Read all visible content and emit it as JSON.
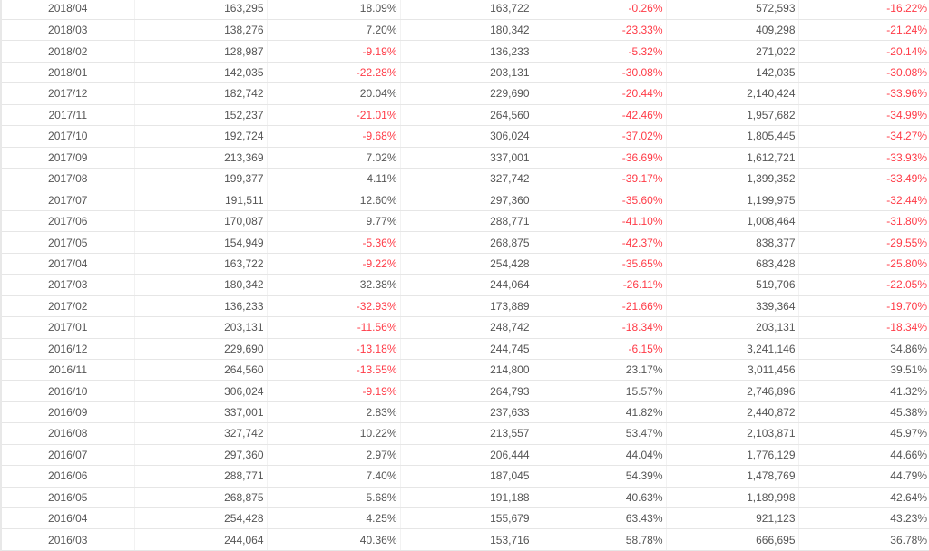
{
  "colors": {
    "text": "#555555",
    "negative": "#ff3b47"
  },
  "rows": [
    [
      "2018/04",
      "163,295",
      "18.09%",
      "163,722",
      "-0.26%",
      "572,593",
      "-16.22%"
    ],
    [
      "2018/03",
      "138,276",
      "7.20%",
      "180,342",
      "-23.33%",
      "409,298",
      "-21.24%"
    ],
    [
      "2018/02",
      "128,987",
      "-9.19%",
      "136,233",
      "-5.32%",
      "271,022",
      "-20.14%"
    ],
    [
      "2018/01",
      "142,035",
      "-22.28%",
      "203,131",
      "-30.08%",
      "142,035",
      "-30.08%"
    ],
    [
      "2017/12",
      "182,742",
      "20.04%",
      "229,690",
      "-20.44%",
      "2,140,424",
      "-33.96%"
    ],
    [
      "2017/11",
      "152,237",
      "-21.01%",
      "264,560",
      "-42.46%",
      "1,957,682",
      "-34.99%"
    ],
    [
      "2017/10",
      "192,724",
      "-9.68%",
      "306,024",
      "-37.02%",
      "1,805,445",
      "-34.27%"
    ],
    [
      "2017/09",
      "213,369",
      "7.02%",
      "337,001",
      "-36.69%",
      "1,612,721",
      "-33.93%"
    ],
    [
      "2017/08",
      "199,377",
      "4.11%",
      "327,742",
      "-39.17%",
      "1,399,352",
      "-33.49%"
    ],
    [
      "2017/07",
      "191,511",
      "12.60%",
      "297,360",
      "-35.60%",
      "1,199,975",
      "-32.44%"
    ],
    [
      "2017/06",
      "170,087",
      "9.77%",
      "288,771",
      "-41.10%",
      "1,008,464",
      "-31.80%"
    ],
    [
      "2017/05",
      "154,949",
      "-5.36%",
      "268,875",
      "-42.37%",
      "838,377",
      "-29.55%"
    ],
    [
      "2017/04",
      "163,722",
      "-9.22%",
      "254,428",
      "-35.65%",
      "683,428",
      "-25.80%"
    ],
    [
      "2017/03",
      "180,342",
      "32.38%",
      "244,064",
      "-26.11%",
      "519,706",
      "-22.05%"
    ],
    [
      "2017/02",
      "136,233",
      "-32.93%",
      "173,889",
      "-21.66%",
      "339,364",
      "-19.70%"
    ],
    [
      "2017/01",
      "203,131",
      "-11.56%",
      "248,742",
      "-18.34%",
      "203,131",
      "-18.34%"
    ],
    [
      "2016/12",
      "229,690",
      "-13.18%",
      "244,745",
      "-6.15%",
      "3,241,146",
      "34.86%"
    ],
    [
      "2016/11",
      "264,560",
      "-13.55%",
      "214,800",
      "23.17%",
      "3,011,456",
      "39.51%"
    ],
    [
      "2016/10",
      "306,024",
      "-9.19%",
      "264,793",
      "15.57%",
      "2,746,896",
      "41.32%"
    ],
    [
      "2016/09",
      "337,001",
      "2.83%",
      "237,633",
      "41.82%",
      "2,440,872",
      "45.38%"
    ],
    [
      "2016/08",
      "327,742",
      "10.22%",
      "213,557",
      "53.47%",
      "2,103,871",
      "45.97%"
    ],
    [
      "2016/07",
      "297,360",
      "2.97%",
      "206,444",
      "44.04%",
      "1,776,129",
      "44.66%"
    ],
    [
      "2016/06",
      "288,771",
      "7.40%",
      "187,045",
      "54.39%",
      "1,478,769",
      "44.79%"
    ],
    [
      "2016/05",
      "268,875",
      "5.68%",
      "191,188",
      "40.63%",
      "1,189,998",
      "42.64%"
    ],
    [
      "2016/04",
      "254,428",
      "4.25%",
      "155,679",
      "63.43%",
      "921,123",
      "43.23%"
    ],
    [
      "2016/03",
      "244,064",
      "40.36%",
      "153,716",
      "58.78%",
      "666,695",
      "36.78%"
    ]
  ]
}
